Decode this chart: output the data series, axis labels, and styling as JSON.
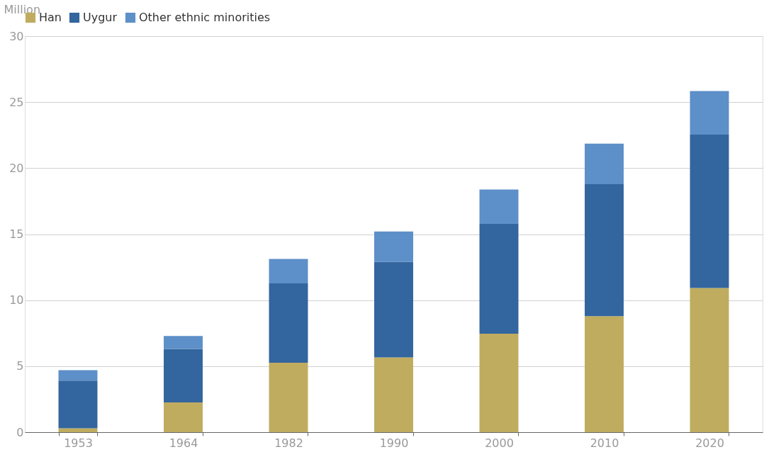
{
  "chart_data": {
    "type": "bar",
    "stacked": true,
    "ylabel": "Million",
    "categories": [
      "1953",
      "1964",
      "1982",
      "1990",
      "2000",
      "2010",
      "2020"
    ],
    "series": [
      {
        "name": "Han",
        "color": "#bfac5f",
        "values": [
          0.3,
          2.25,
          5.26,
          5.66,
          7.46,
          8.79,
          10.92
        ]
      },
      {
        "name": "Uygur",
        "color": "#33659e",
        "values": [
          3.6,
          4.05,
          6.01,
          7.23,
          8.32,
          10.0,
          11.62
        ]
      },
      {
        "name": "Other ethnic minorities",
        "color": "#5d8fc8",
        "values": [
          0.8,
          0.98,
          1.85,
          2.31,
          2.6,
          3.06,
          3.3
        ]
      }
    ],
    "ylim": [
      0,
      30
    ],
    "yticks": [
      0,
      5,
      10,
      15,
      20,
      25,
      30
    ],
    "grid": "y",
    "legend": "top"
  }
}
